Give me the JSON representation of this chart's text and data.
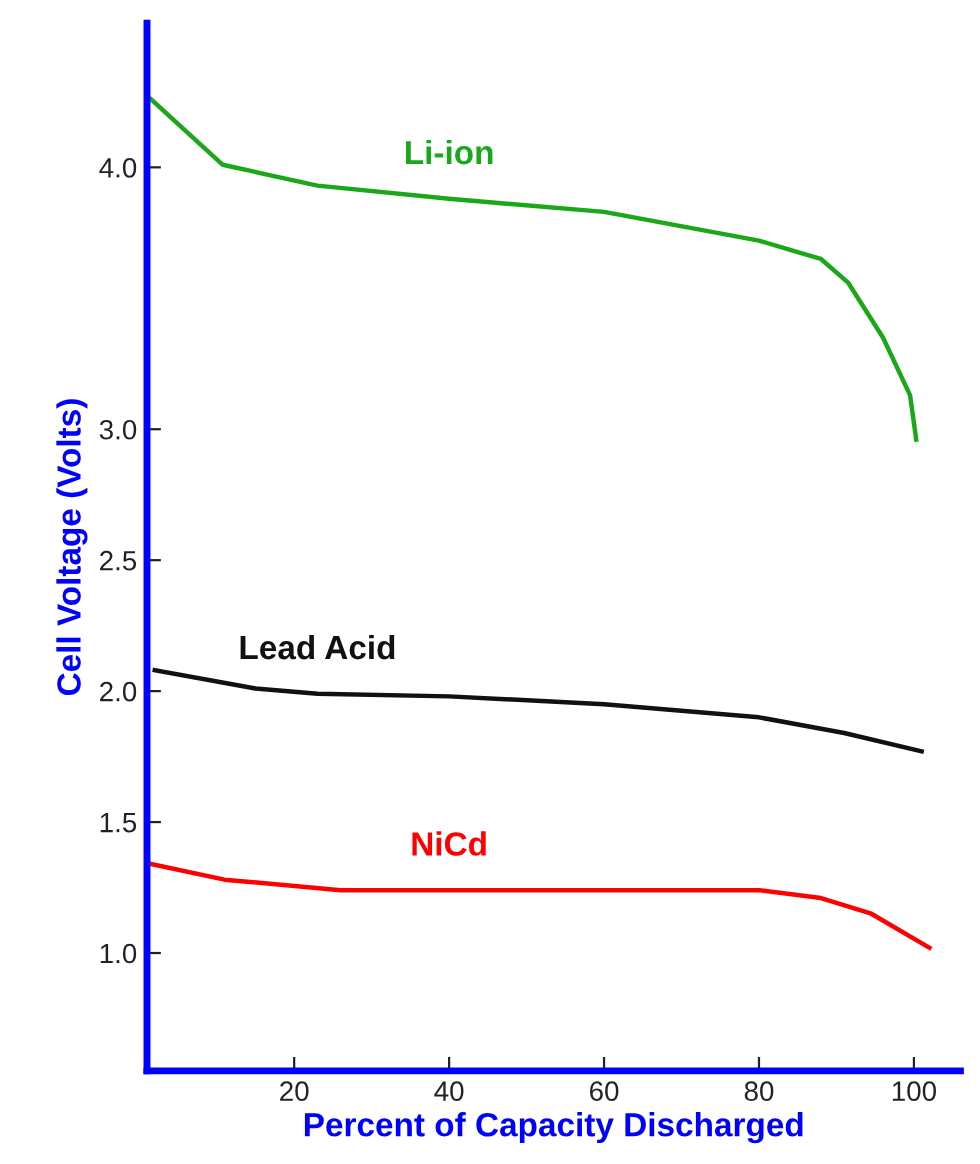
{
  "chart_data": {
    "type": "line",
    "xlabel": "Percent of Capacity Discharged",
    "ylabel": "Cell Voltage (Volts)",
    "xlim": [
      1,
      106
    ],
    "xticks": [
      20,
      40,
      60,
      80,
      100
    ],
    "ylim": [
      0.55,
      4.55
    ],
    "yticks": [
      {
        "value": 1,
        "label": "1.0"
      },
      {
        "value": 1.5,
        "label": "1.5"
      },
      {
        "value": 2,
        "label": "2.0"
      },
      {
        "value": 2.5,
        "label": "2.5"
      },
      {
        "value": 3,
        "label": "3.0"
      },
      {
        "value": 4,
        "label": "4.0"
      }
    ],
    "grid": false,
    "legend": false,
    "marker": "none",
    "line_style": "solid",
    "series": [
      {
        "name": "Li-ion",
        "color": "#1aa81a",
        "x": [
          1.5,
          10.75,
          23,
          40,
          60,
          80,
          88,
          91.5,
          96,
          99.5,
          100.3
        ],
        "values": [
          4.26,
          4.01,
          3.93,
          3.88,
          3.83,
          3.72,
          3.65,
          3.56,
          3.35,
          3.13,
          2.96
        ]
      },
      {
        "name": "Lead Acid",
        "color": "#111111",
        "x": [
          2,
          15,
          23,
          40,
          60,
          80,
          91,
          101
        ],
        "values": [
          2.08,
          2.01,
          1.99,
          1.98,
          1.95,
          1.9,
          1.84,
          1.77
        ]
      },
      {
        "name": "NiCd",
        "color": "#ff0000",
        "x": [
          1.5,
          11,
          26,
          40,
          60,
          80,
          88,
          94.5,
          102
        ],
        "values": [
          1.34,
          1.28,
          1.24,
          1.24,
          1.24,
          1.24,
          1.21,
          1.15,
          1.02
        ]
      }
    ]
  }
}
